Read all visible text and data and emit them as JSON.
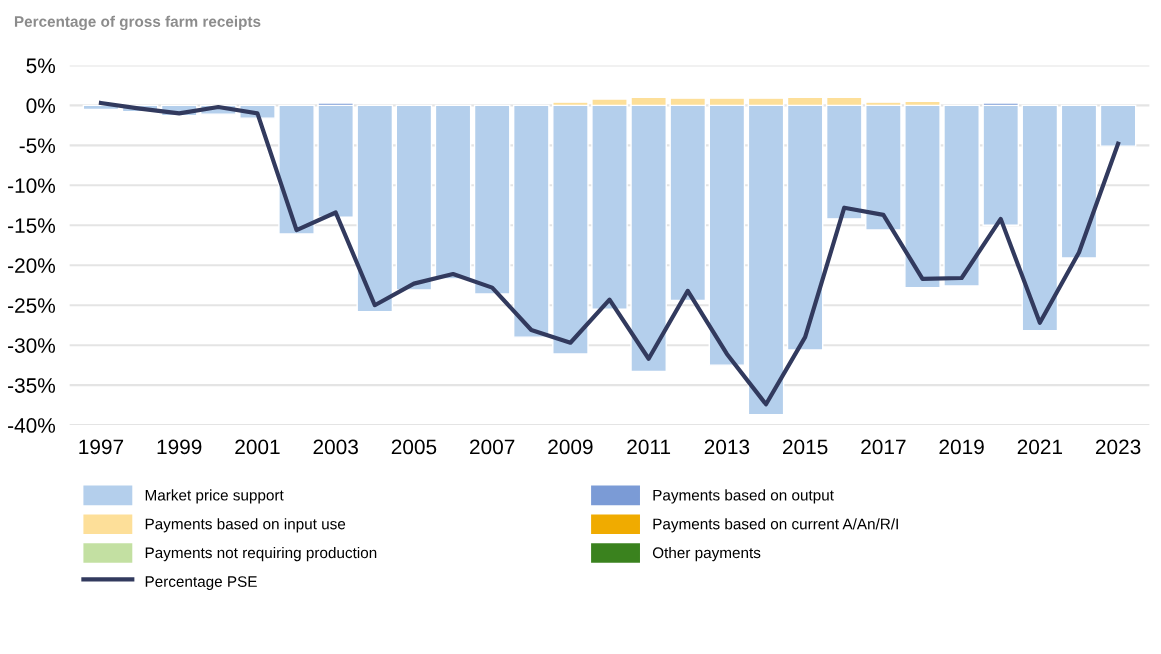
{
  "chart_data": {
    "type": "bar",
    "stacked": true,
    "title": "Percentage of gross farm receipts",
    "categories": [
      "1997",
      null,
      "1999",
      null,
      "2001",
      null,
      "2003",
      null,
      "2005",
      null,
      "2007",
      null,
      "2009",
      null,
      "2011",
      null,
      "2013",
      null,
      "2015",
      null,
      "2017",
      null,
      "2019",
      null,
      "2021",
      null,
      "2023"
    ],
    "series": [
      {
        "name": "Market price support",
        "color": "#b4cfec",
        "values": [
          -0.5,
          -0.8,
          -1.3,
          -1.1,
          -1.6,
          -16.1,
          -14.0,
          -25.8,
          -23.1,
          -21.7,
          -23.6,
          -29.0,
          -31.1,
          -25.5,
          -33.3,
          -24.4,
          -32.5,
          -38.7,
          -30.6,
          -14.2,
          -15.6,
          -22.8,
          -22.6,
          -15.0,
          -28.2,
          -19.1,
          -5.1
        ]
      },
      {
        "name": "Payments based on output",
        "color": "#7b9bd6",
        "values": [
          null,
          null,
          null,
          null,
          null,
          null,
          0.3,
          null,
          null,
          null,
          null,
          null,
          null,
          null,
          null,
          null,
          null,
          null,
          null,
          null,
          null,
          null,
          null,
          0.3,
          null,
          null,
          null
        ]
      },
      {
        "name": "Payments based on input use",
        "color": "#fddf99",
        "values": [
          null,
          null,
          null,
          null,
          null,
          null,
          null,
          null,
          null,
          null,
          null,
          null,
          0.4,
          0.8,
          1.0,
          0.9,
          0.9,
          0.9,
          1.0,
          1.0,
          0.4,
          0.5,
          null,
          null,
          null,
          null,
          null
        ]
      },
      {
        "name": "Payments based on current A/An/R/I",
        "color": "#f0ab00",
        "values": [
          null,
          null,
          null,
          null,
          null,
          null,
          null,
          null,
          null,
          null,
          null,
          null,
          null,
          null,
          null,
          null,
          null,
          null,
          null,
          null,
          null,
          null,
          null,
          null,
          null,
          null,
          null
        ]
      },
      {
        "name": "Payments not requiring production",
        "color": "#c3e0a2",
        "values": [
          null,
          null,
          null,
          null,
          null,
          null,
          null,
          null,
          null,
          null,
          null,
          null,
          null,
          null,
          null,
          null,
          null,
          null,
          null,
          null,
          null,
          null,
          null,
          null,
          null,
          null,
          null
        ]
      },
      {
        "name": "Other payments",
        "color": "#3a821e",
        "values": [
          null,
          null,
          null,
          null,
          null,
          null,
          null,
          null,
          null,
          null,
          null,
          null,
          null,
          null,
          null,
          null,
          null,
          null,
          null,
          null,
          null,
          null,
          null,
          null,
          null,
          null,
          null
        ]
      },
      {
        "name": "Percentage PSE",
        "type": "line",
        "color": "#323a5e",
        "values": [
          0.3,
          -0.4,
          -1.0,
          -0.2,
          -1.0,
          -15.6,
          -13.4,
          -25.0,
          -22.3,
          -21.1,
          -22.8,
          -28.1,
          -29.7,
          -24.3,
          -31.7,
          -23.2,
          -31.1,
          -37.4,
          -29.0,
          -12.8,
          -13.7,
          -21.7,
          -21.6,
          -14.2,
          -27.2,
          -18.4,
          -4.8
        ]
      }
    ],
    "ylim": [
      -40,
      5
    ],
    "yticks": [
      {
        "value": 5,
        "label": "5%"
      },
      {
        "value": 0,
        "label": "0%"
      },
      {
        "value": -5,
        "label": "-5%"
      },
      {
        "value": -10,
        "label": "-10%"
      },
      {
        "value": -15,
        "label": "-15%"
      },
      {
        "value": -20,
        "label": "-20%"
      },
      {
        "value": -25,
        "label": "-25%"
      },
      {
        "value": -30,
        "label": "-30%"
      },
      {
        "value": -35,
        "label": "-35%"
      },
      {
        "value": -40,
        "label": "-40%"
      }
    ],
    "grid": "y",
    "legend": "bottom"
  }
}
